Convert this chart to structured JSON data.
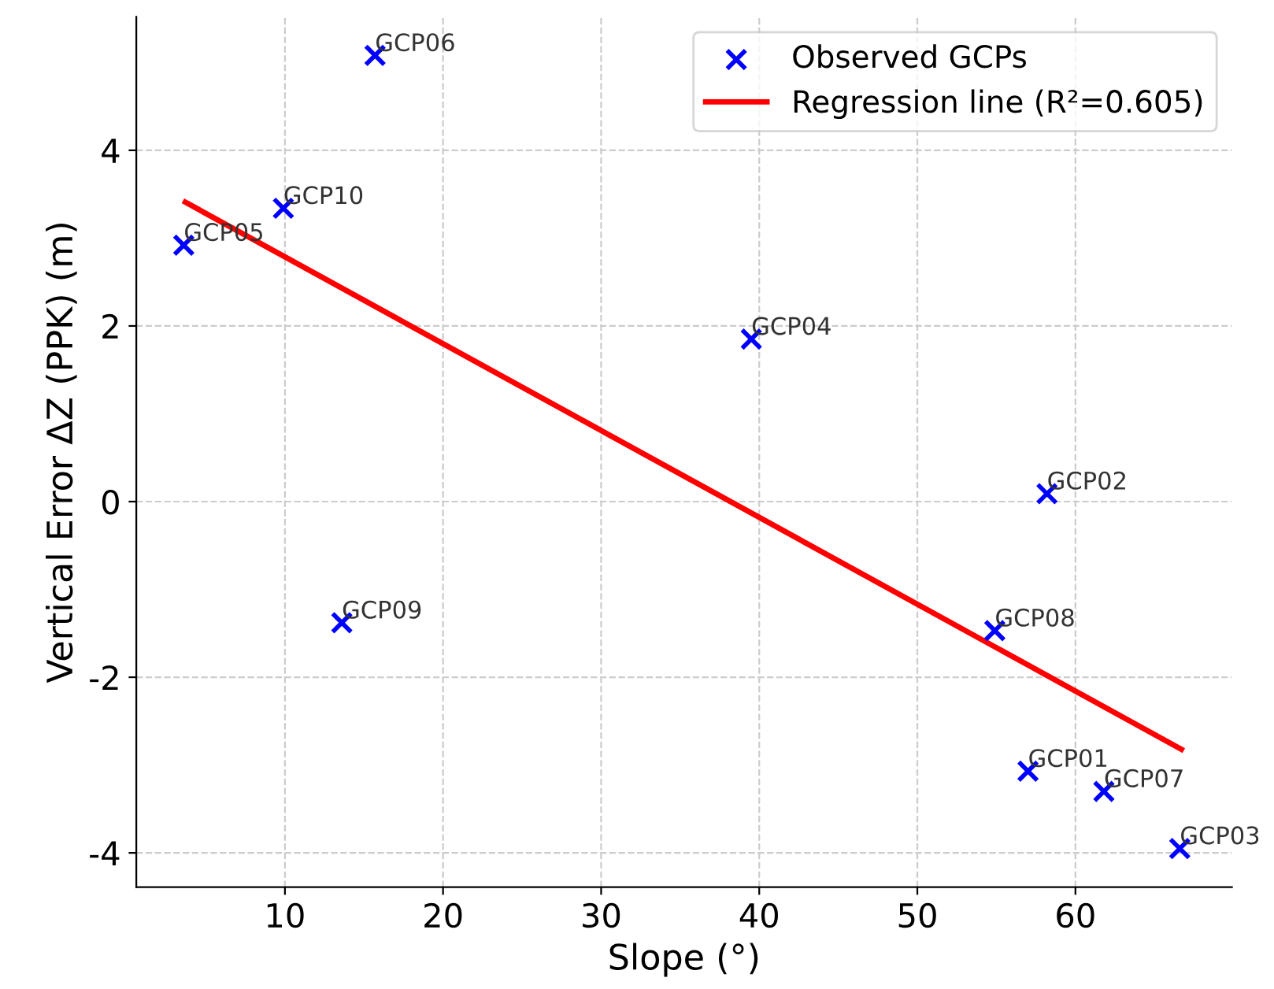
{
  "chart_data": {
    "type": "scatter",
    "xlabel": "Slope (°)",
    "ylabel": "Vertical Error ΔZ (PPK) (m)",
    "xlim": [
      0.6,
      69.9
    ],
    "ylim": [
      -4.39,
      5.52
    ],
    "xticks": [
      10,
      20,
      30,
      40,
      50,
      60
    ],
    "yticks": [
      -4,
      -2,
      0,
      2,
      4
    ],
    "grid": true,
    "legend": "top right",
    "annotations": [
      {
        "text": "GCP06",
        "x": 15.7,
        "y": 5.08
      },
      {
        "text": "GCP10",
        "x": 9.9,
        "y": 3.34
      },
      {
        "text": "GCP05",
        "x": 3.6,
        "y": 2.92
      },
      {
        "text": "GCP04",
        "x": 39.5,
        "y": 1.85
      },
      {
        "text": "GCP02",
        "x": 58.2,
        "y": 0.09
      },
      {
        "text": "GCP09",
        "x": 13.6,
        "y": -1.38
      },
      {
        "text": "GCP08",
        "x": 54.9,
        "y": -1.47
      },
      {
        "text": "GCP01",
        "x": 57.0,
        "y": -3.07
      },
      {
        "text": "GCP07",
        "x": 61.8,
        "y": -3.3
      },
      {
        "text": "GCP03",
        "x": 66.6,
        "y": -3.95
      }
    ],
    "series": [
      {
        "name": "Observed GCPs",
        "color": "#0000ff",
        "marker": "cross",
        "x": [
          15.7,
          9.9,
          3.6,
          39.5,
          58.2,
          13.6,
          54.9,
          57.0,
          61.8,
          66.6
        ],
        "values": [
          5.08,
          3.34,
          2.92,
          1.85,
          0.09,
          -1.38,
          -1.47,
          -3.07,
          -3.3,
          -3.95
        ]
      },
      {
        "name": "Regression line (R²=0.605)",
        "type": "line",
        "color": "#ff0000",
        "line_style": "solid",
        "x": [
          3.7,
          66.7
        ],
        "values": [
          3.41,
          -2.82
        ]
      }
    ]
  }
}
